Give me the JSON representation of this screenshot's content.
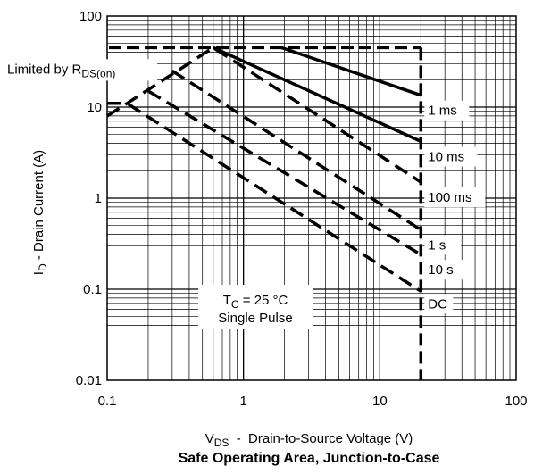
{
  "chart_data": {
    "type": "line",
    "title": "Safe Operating Area, Junction-to-Case",
    "xlabel": {
      "main": "V",
      "sub": "DS",
      "rest": "  -  Drain-to-Source Voltage (V)"
    },
    "ylabel": {
      "main": "I",
      "sub": "D",
      "rest": " - Drain Current (A)"
    },
    "x_scale": "log",
    "y_scale": "log",
    "xlim": [
      0.1,
      100
    ],
    "ylim": [
      0.01,
      100
    ],
    "grid": true,
    "x_ticks": [
      {
        "value": 0.1,
        "label": "0.1"
      },
      {
        "value": 1,
        "label": "1"
      },
      {
        "value": 10,
        "label": "10"
      },
      {
        "value": 100,
        "label": "100"
      }
    ],
    "y_ticks": [
      {
        "value": 0.01,
        "label": "0.01"
      },
      {
        "value": 0.1,
        "label": "0.1"
      },
      {
        "value": 1,
        "label": "1"
      },
      {
        "value": 10,
        "label": "10"
      },
      {
        "value": 100,
        "label": "100"
      }
    ],
    "limit_label": {
      "main": "Limited by R",
      "sub": "DS(on)"
    },
    "limit_line": {
      "y": 45,
      "x": [
        0.1,
        20
      ]
    },
    "vds_limit": {
      "x": 20,
      "y": [
        0.01,
        45
      ]
    },
    "series": [
      {
        "name": "1 ms",
        "style": "solid",
        "x": [
          1.9,
          20
        ],
        "y": [
          45,
          13.5
        ]
      },
      {
        "name": "10 ms",
        "style": "solid",
        "x": [
          0.6,
          20
        ],
        "y": [
          45,
          4.2
        ]
      },
      {
        "name": "100 ms",
        "style": "dashed",
        "x": [
          0.1,
          0.14,
          0.6,
          20
        ],
        "y": [
          8,
          11,
          45,
          1.5
        ]
      },
      {
        "name": "1 s",
        "style": "dashed",
        "x": [
          0.3,
          20
        ],
        "y": [
          25,
          0.45
        ]
      },
      {
        "name": "10 s",
        "style": "dashed",
        "x": [
          0.2,
          20
        ],
        "y": [
          15,
          0.24
        ]
      },
      {
        "name": "DC",
        "style": "dashed",
        "x": [
          0.1,
          0.14,
          20
        ],
        "y": [
          11,
          11,
          0.095
        ]
      }
    ],
    "annotation": {
      "line1_main": "T",
      "line1_sub": "C",
      "line1_rest": " = 25 °C",
      "line2": "Single Pulse"
    }
  }
}
